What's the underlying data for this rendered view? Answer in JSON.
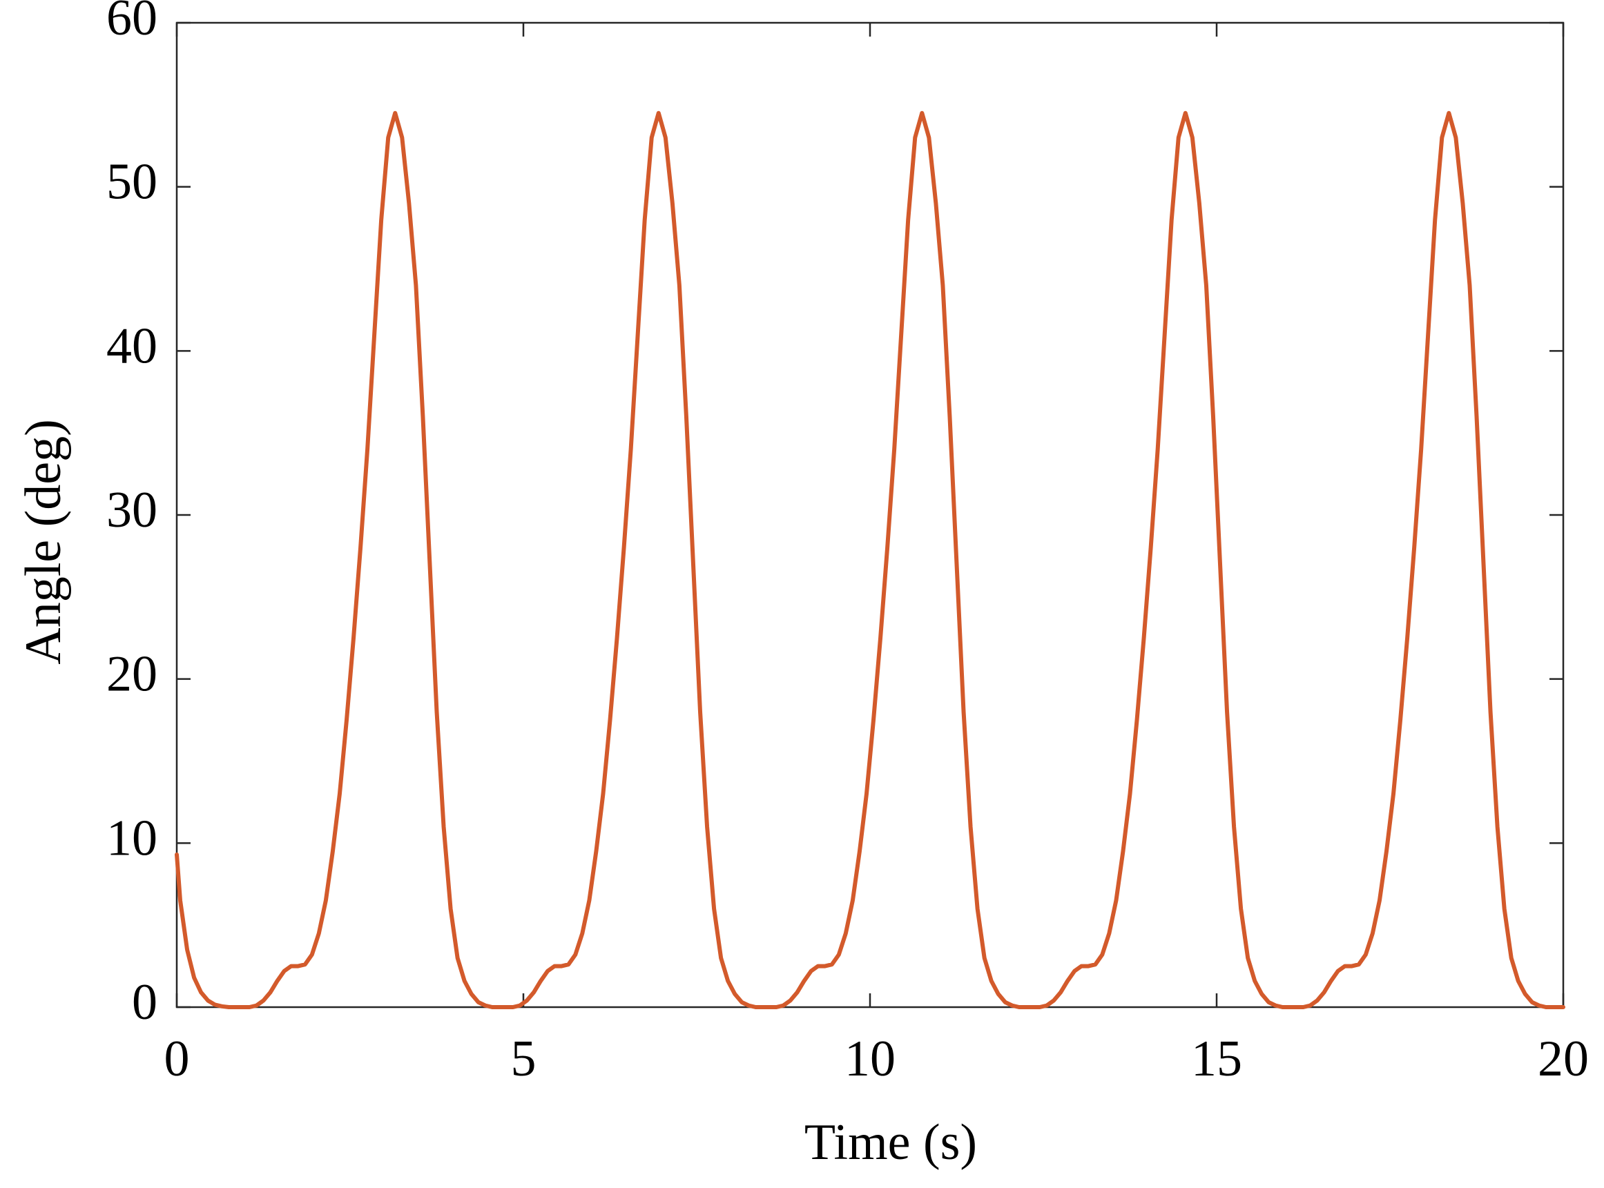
{
  "chart_data": {
    "type": "line",
    "xlabel": "Time (s)",
    "ylabel": "Angle (deg)",
    "x": [
      0,
      0.05,
      0.15,
      0.25,
      0.35,
      0.45,
      0.55,
      0.65,
      0.75,
      0.85,
      0.95,
      1.05,
      1.15,
      1.25,
      1.35,
      1.45,
      1.55,
      1.65,
      1.75,
      1.85,
      1.95,
      2.05,
      2.15,
      2.25,
      2.35,
      2.45,
      2.55,
      2.65,
      2.75,
      2.85,
      2.95,
      3.05,
      3.15,
      3.25,
      3.35,
      3.45,
      3.55,
      3.65,
      3.75,
      3.85,
      3.95,
      4.05,
      4.15,
      4.25,
      4.35,
      4.45,
      4.55,
      4.65,
      4.75,
      4.85,
      4.95,
      5.05,
      5.15,
      5.25,
      5.35,
      5.45,
      5.55,
      5.65,
      5.75,
      5.85,
      5.95,
      6.05,
      6.15,
      6.25,
      6.35,
      6.45,
      6.55,
      6.65,
      6.75,
      6.85,
      6.95,
      7.05,
      7.15,
      7.25,
      7.35,
      7.45,
      7.55,
      7.65,
      7.75,
      7.85,
      7.95,
      8.05,
      8.15,
      8.25,
      8.35,
      8.45,
      8.55,
      8.65,
      8.75,
      8.85,
      8.95,
      9.05,
      9.15,
      9.25,
      9.35,
      9.45,
      9.55,
      9.65,
      9.75,
      9.85,
      9.95,
      10.05,
      10.15,
      10.25,
      10.35,
      10.45,
      10.55,
      10.65,
      10.75,
      10.85,
      10.95,
      11.05,
      11.15,
      11.25,
      11.35,
      11.45,
      11.55,
      11.65,
      11.75,
      11.85,
      11.95,
      12.05,
      12.15,
      12.25,
      12.35,
      12.45,
      12.55,
      12.65,
      12.75,
      12.85,
      12.95,
      13.05,
      13.15,
      13.25,
      13.35,
      13.45,
      13.55,
      13.65,
      13.75,
      13.85,
      13.95,
      14.05,
      14.15,
      14.25,
      14.35,
      14.45,
      14.55,
      14.65,
      14.75,
      14.85,
      14.95,
      15.05,
      15.15,
      15.25,
      15.35,
      15.45,
      15.55,
      15.65,
      15.75,
      15.85,
      15.95,
      16.05,
      16.15,
      16.25,
      16.35,
      16.45,
      16.55,
      16.65,
      16.75,
      16.85,
      16.95,
      17.05,
      17.15,
      17.25,
      17.35,
      17.45,
      17.55,
      17.65,
      17.75,
      17.85,
      17.95,
      18.05,
      18.15,
      18.25,
      18.35,
      18.45,
      18.55,
      18.65,
      18.75,
      18.85,
      18.95,
      19.05,
      19.15,
      19.25,
      19.35,
      19.45,
      19.55,
      19.65,
      19.75,
      19.85,
      19.95,
      20
    ],
    "values": [
      9.3,
      6.5,
      3.5,
      1.8,
      0.9,
      0.4,
      0.15,
      0.05,
      0,
      0,
      0,
      0,
      0.1,
      0.4,
      0.9,
      1.6,
      2.2,
      2.5,
      2.5,
      2.6,
      3.2,
      4.5,
      6.5,
      9.5,
      13,
      17.5,
      22.5,
      28,
      34,
      41,
      48,
      53,
      54.5,
      53,
      49,
      44,
      36,
      27,
      18,
      11,
      6,
      3,
      1.6,
      0.8,
      0.3,
      0.1,
      0,
      0,
      0,
      0,
      0.1,
      0.4,
      0.9,
      1.6,
      2.2,
      2.5,
      2.5,
      2.6,
      3.2,
      4.5,
      6.5,
      9.5,
      13,
      17.5,
      22.5,
      28,
      34,
      41,
      48,
      53,
      54.5,
      53,
      49,
      44,
      36,
      27,
      18,
      11,
      6,
      3,
      1.6,
      0.8,
      0.3,
      0.1,
      0,
      0,
      0,
      0,
      0.1,
      0.4,
      0.9,
      1.6,
      2.2,
      2.5,
      2.5,
      2.6,
      3.2,
      4.5,
      6.5,
      9.5,
      13,
      17.5,
      22.5,
      28,
      34,
      41,
      48,
      53,
      54.5,
      53,
      49,
      44,
      36,
      27,
      18,
      11,
      6,
      3,
      1.6,
      0.8,
      0.3,
      0.1,
      0,
      0,
      0,
      0,
      0.1,
      0.4,
      0.9,
      1.6,
      2.2,
      2.5,
      2.5,
      2.6,
      3.2,
      4.5,
      6.5,
      9.5,
      13,
      17.5,
      22.5,
      28,
      34,
      41,
      48,
      53,
      54.5,
      53,
      49,
      44,
      36,
      27,
      18,
      11,
      6,
      3,
      1.6,
      0.8,
      0.3,
      0.1,
      0,
      0,
      0,
      0,
      0.1,
      0.4,
      0.9,
      1.6,
      2.2,
      2.5,
      2.5,
      2.6,
      3.2,
      4.5,
      6.5,
      9.5,
      13,
      17.5,
      22.5,
      28,
      34,
      41,
      48,
      53,
      54.5,
      53,
      49,
      44,
      36,
      27,
      18,
      11,
      6,
      3,
      1.6,
      0.8,
      0.3,
      0.1,
      0,
      0,
      0,
      0
    ],
    "color": "#d35a2b",
    "xlim": [
      0,
      20
    ],
    "xticks": [
      0,
      5,
      10,
      15,
      20
    ],
    "ylim": [
      0,
      60
    ],
    "yticks": [
      0,
      10,
      20,
      30,
      40,
      50,
      60
    ],
    "grid": false
  }
}
